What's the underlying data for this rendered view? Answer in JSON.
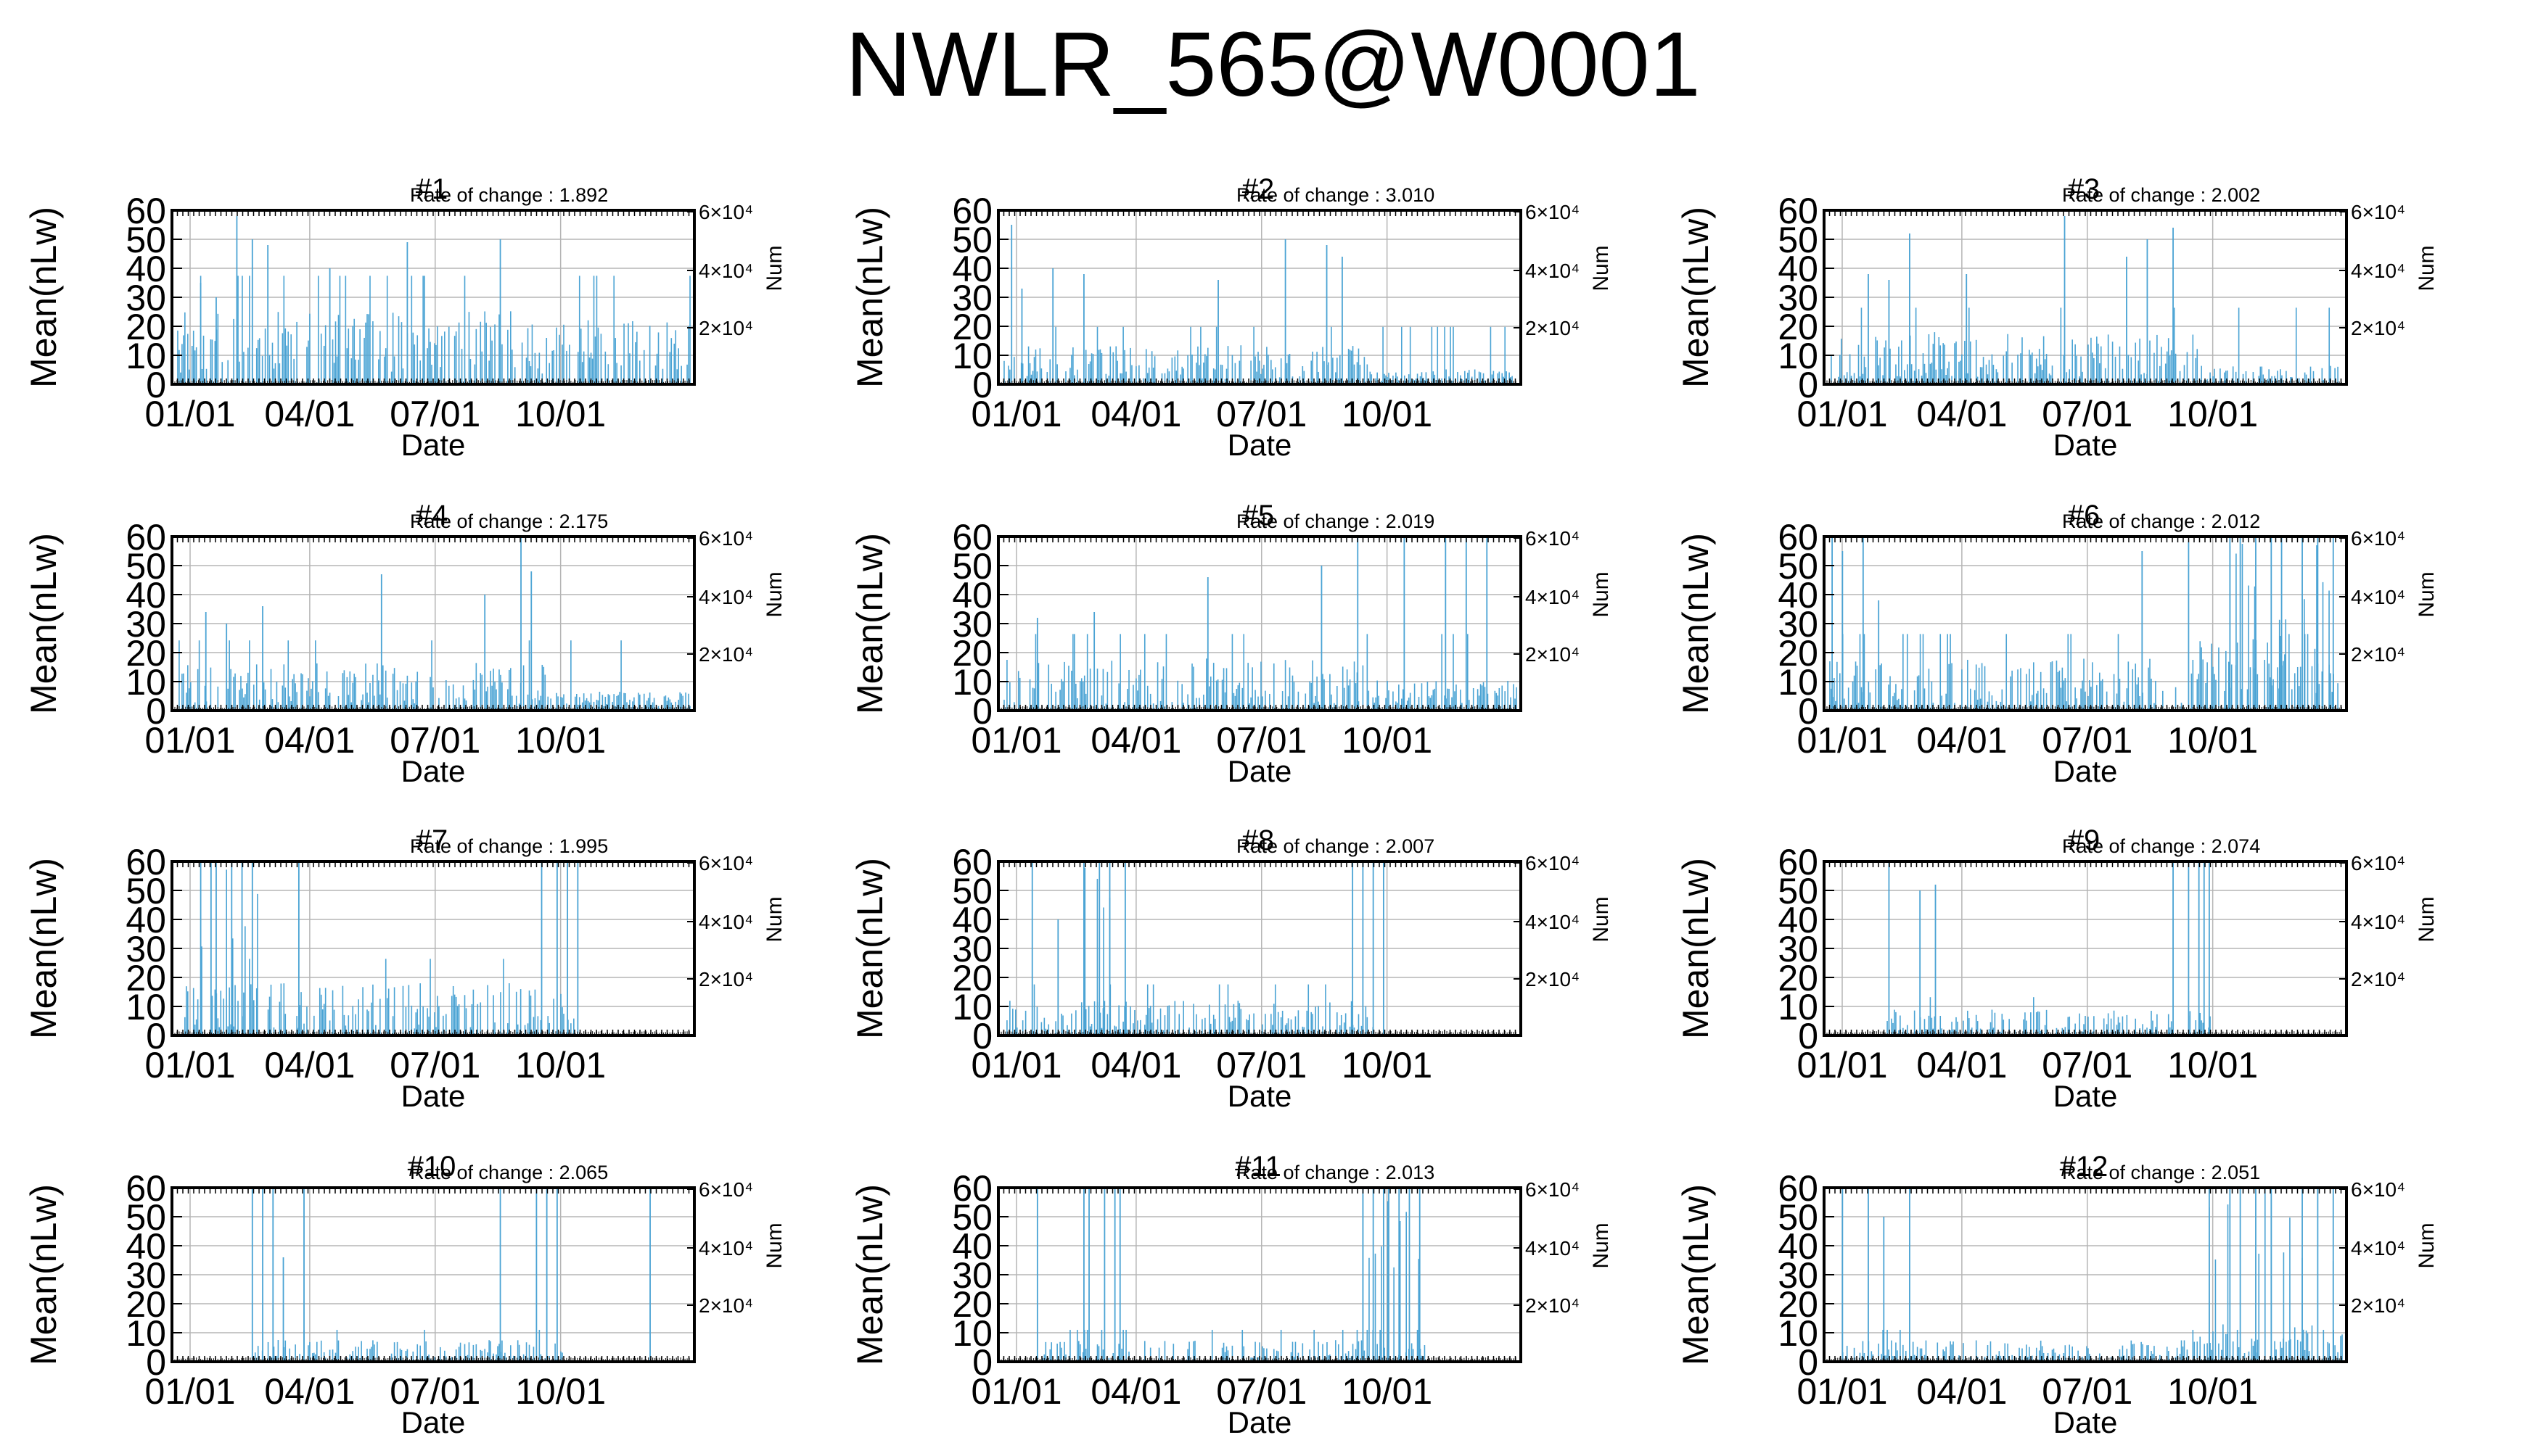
{
  "figure_title": "NWLR_565@W0001",
  "chart_data": [
    {
      "type": "bar",
      "title": "#1",
      "annotation": "Rate of change : 1.892",
      "xlabel": "Date",
      "ylabel": "Mean(nLw)",
      "y2label": "Num",
      "ylim": [
        0,
        60
      ],
      "y_ticks": [
        "0",
        "10",
        "20",
        "30",
        "40",
        "50",
        "60"
      ],
      "x_ticks": [
        "01/01",
        "04/01",
        "07/01",
        "10/01"
      ],
      "y2_ticks": [
        "2×10⁴",
        "4×10⁴",
        "6×10⁴"
      ],
      "grid": true,
      "color": "#4aa3d4",
      "typical_value": 17,
      "density": 0.55,
      "tail_level": 17,
      "spikes": [
        [
          0.05,
          35
        ],
        [
          0.12,
          58
        ],
        [
          0.15,
          50
        ],
        [
          0.18,
          48
        ],
        [
          0.45,
          49
        ],
        [
          0.63,
          50
        ],
        [
          0.08,
          30
        ],
        [
          0.3,
          40
        ]
      ],
      "outliers_periods": []
    },
    {
      "type": "bar",
      "title": "#2",
      "annotation": "Rate of change : 3.010",
      "xlabel": "Date",
      "ylabel": "Mean(nLw)",
      "y2label": "Num",
      "ylim": [
        0,
        60
      ],
      "y_ticks": [
        "0",
        "10",
        "20",
        "30",
        "40",
        "50",
        "60"
      ],
      "x_ticks": [
        "01/01",
        "04/01",
        "07/01",
        "10/01"
      ],
      "y2_ticks": [
        "2×10⁴",
        "4×10⁴",
        "6×10⁴"
      ],
      "grid": true,
      "color": "#4aa3d4",
      "typical_value": 9,
      "density": 0.55,
      "tail_level": 4,
      "spikes": [
        [
          0.02,
          55
        ],
        [
          0.1,
          40
        ],
        [
          0.16,
          38
        ],
        [
          0.42,
          36
        ],
        [
          0.55,
          50
        ],
        [
          0.63,
          48
        ],
        [
          0.66,
          44
        ],
        [
          0.04,
          33
        ]
      ],
      "outliers_periods": []
    },
    {
      "type": "bar",
      "title": "#3",
      "annotation": "Rate of change : 2.002",
      "xlabel": "Date",
      "ylabel": "Mean(nLw)",
      "y2label": "Num",
      "ylim": [
        0,
        60
      ],
      "y_ticks": [
        "0",
        "10",
        "20",
        "30",
        "40",
        "50",
        "60"
      ],
      "x_ticks": [
        "01/01",
        "04/01",
        "07/01",
        "10/01"
      ],
      "y2_ticks": [
        "2×10⁴",
        "4×10⁴",
        "6×10⁴"
      ],
      "grid": true,
      "color": "#4aa3d4",
      "typical_value": 12,
      "density": 0.55,
      "tail_level": 5,
      "spikes": [
        [
          0.08,
          38
        ],
        [
          0.16,
          52
        ],
        [
          0.27,
          38
        ],
        [
          0.46,
          58
        ],
        [
          0.58,
          44
        ],
        [
          0.62,
          50
        ],
        [
          0.67,
          54
        ],
        [
          0.12,
          36
        ]
      ],
      "outliers_periods": []
    },
    {
      "type": "bar",
      "title": "#4",
      "annotation": "Rate of change : 2.175",
      "xlabel": "Date",
      "ylabel": "Mean(nLw)",
      "y2label": "Num",
      "ylim": [
        0,
        60
      ],
      "y_ticks": [
        "0",
        "10",
        "20",
        "30",
        "40",
        "50",
        "60"
      ],
      "x_ticks": [
        "01/01",
        "04/01",
        "07/01",
        "10/01"
      ],
      "y2_ticks": [
        "2×10⁴",
        "4×10⁴",
        "6×10⁴"
      ],
      "grid": true,
      "color": "#4aa3d4",
      "typical_value": 11,
      "density": 0.55,
      "tail_level": 5,
      "spikes": [
        [
          0.06,
          34
        ],
        [
          0.17,
          36
        ],
        [
          0.4,
          47
        ],
        [
          0.6,
          40
        ],
        [
          0.67,
          60
        ],
        [
          0.69,
          48
        ],
        [
          0.1,
          30
        ]
      ],
      "outliers_periods": []
    },
    {
      "type": "bar",
      "title": "#5",
      "annotation": "Rate of change : 2.019",
      "xlabel": "Date",
      "ylabel": "Mean(nLw)",
      "y2label": "Num",
      "ylim": [
        0,
        60
      ],
      "y_ticks": [
        "0",
        "10",
        "20",
        "30",
        "40",
        "50",
        "60"
      ],
      "x_ticks": [
        "01/01",
        "04/01",
        "07/01",
        "10/01"
      ],
      "y2_ticks": [
        "2×10⁴",
        "4×10⁴",
        "6×10⁴"
      ],
      "grid": true,
      "color": "#4aa3d4",
      "typical_value": 12,
      "density": 0.55,
      "tail_level": 8,
      "spikes": [
        [
          0.07,
          32
        ],
        [
          0.18,
          34
        ],
        [
          0.4,
          46
        ],
        [
          0.62,
          50
        ],
        [
          0.69,
          60
        ],
        [
          0.78,
          60
        ],
        [
          0.86,
          60
        ],
        [
          0.9,
          60
        ],
        [
          0.94,
          60
        ]
      ],
      "outliers_periods": []
    },
    {
      "type": "bar",
      "title": "#6",
      "annotation": "Rate of change : 2.012",
      "xlabel": "Date",
      "ylabel": "Mean(nLw)",
      "y2label": "Num",
      "ylim": [
        0,
        60
      ],
      "y_ticks": [
        "0",
        "10",
        "20",
        "30",
        "40",
        "50",
        "60"
      ],
      "x_ticks": [
        "01/01",
        "04/01",
        "07/01",
        "10/01"
      ],
      "y2_ticks": [
        "2×10⁴",
        "4×10⁴",
        "6×10⁴"
      ],
      "grid": true,
      "color": "#4aa3d4",
      "typical_value": 12,
      "density": 0.55,
      "tail_level": 20,
      "spikes": [
        [
          0.01,
          60
        ],
        [
          0.03,
          55
        ],
        [
          0.07,
          60
        ],
        [
          0.1,
          38
        ],
        [
          0.61,
          55
        ],
        [
          0.7,
          58
        ],
        [
          0.78,
          60
        ],
        [
          0.8,
          60
        ],
        [
          0.83,
          60
        ],
        [
          0.86,
          60
        ],
        [
          0.88,
          60
        ],
        [
          0.92,
          60
        ],
        [
          0.95,
          60
        ],
        [
          0.98,
          60
        ]
      ],
      "outliers_periods": [
        [
          0.78,
          1.0
        ]
      ]
    },
    {
      "type": "bar",
      "title": "#7",
      "annotation": "Rate of change : 1.995",
      "xlabel": "Date",
      "ylabel": "Mean(nLw)",
      "y2label": "Num",
      "ylim": [
        0,
        60
      ],
      "y_ticks": [
        "0",
        "10",
        "20",
        "30",
        "40",
        "50",
        "60"
      ],
      "x_ticks": [
        "01/01",
        "04/01",
        "07/01",
        "10/01"
      ],
      "y2_ticks": [
        "2×10⁴",
        "4×10⁴",
        "6×10⁴"
      ],
      "grid": true,
      "color": "#4aa3d4",
      "typical_value": 12,
      "density": 0.5,
      "tail_level": 0,
      "spikes": [
        [
          0.05,
          60
        ],
        [
          0.07,
          60
        ],
        [
          0.08,
          60
        ],
        [
          0.11,
          60
        ],
        [
          0.13,
          60
        ],
        [
          0.15,
          60
        ],
        [
          0.24,
          60
        ],
        [
          0.71,
          60
        ],
        [
          0.74,
          60
        ],
        [
          0.76,
          60
        ],
        [
          0.78,
          60
        ]
      ],
      "outliers_periods": [
        [
          0.04,
          0.16
        ]
      ],
      "data_end": 0.78
    },
    {
      "type": "bar",
      "title": "#8",
      "annotation": "Rate of change : 2.007",
      "xlabel": "Date",
      "ylabel": "Mean(nLw)",
      "y2label": "Num",
      "ylim": [
        0,
        60
      ],
      "y_ticks": [
        "0",
        "10",
        "20",
        "30",
        "40",
        "50",
        "60"
      ],
      "x_ticks": [
        "01/01",
        "04/01",
        "07/01",
        "10/01"
      ],
      "y2_ticks": [
        "2×10⁴",
        "4×10⁴",
        "6×10⁴"
      ],
      "grid": true,
      "color": "#4aa3d4",
      "typical_value": 8,
      "density": 0.45,
      "tail_level": 0,
      "spikes": [
        [
          0.06,
          60
        ],
        [
          0.11,
          40
        ],
        [
          0.16,
          60
        ],
        [
          0.19,
          60
        ],
        [
          0.21,
          60
        ],
        [
          0.24,
          60
        ],
        [
          0.68,
          60
        ],
        [
          0.7,
          60
        ],
        [
          0.72,
          60
        ],
        [
          0.74,
          60
        ]
      ],
      "outliers_periods": [
        [
          0.15,
          0.25
        ]
      ],
      "data_end": 0.75
    },
    {
      "type": "bar",
      "title": "#9",
      "annotation": "Rate of change : 2.074",
      "xlabel": "Date",
      "ylabel": "Mean(nLw)",
      "y2label": "Num",
      "ylim": [
        0,
        60
      ],
      "y_ticks": [
        "0",
        "10",
        "20",
        "30",
        "40",
        "50",
        "60"
      ],
      "x_ticks": [
        "01/01",
        "04/01",
        "07/01",
        "10/01"
      ],
      "y2_ticks": [
        "2×10⁴",
        "4×10⁴",
        "6×10⁴"
      ],
      "grid": true,
      "color": "#4aa3d4",
      "typical_value": 6,
      "density": 0.45,
      "tail_level": 0,
      "spikes": [
        [
          0.12,
          60
        ],
        [
          0.18,
          50
        ],
        [
          0.21,
          52
        ],
        [
          0.67,
          60
        ],
        [
          0.7,
          60
        ],
        [
          0.72,
          60
        ],
        [
          0.73,
          60
        ],
        [
          0.74,
          60
        ]
      ],
      "outliers_periods": [],
      "data_start": 0.11,
      "data_end": 0.75
    },
    {
      "type": "bar",
      "title": "#10",
      "annotation": "Rate of change : 2.065",
      "xlabel": "Date",
      "ylabel": "Mean(nLw)",
      "y2label": "Num",
      "ylim": [
        0,
        60
      ],
      "y_ticks": [
        "0",
        "10",
        "20",
        "30",
        "40",
        "50",
        "60"
      ],
      "x_ticks": [
        "01/01",
        "04/01",
        "07/01",
        "10/01"
      ],
      "y2_ticks": [
        "2×10⁴",
        "4×10⁴",
        "6×10⁴"
      ],
      "grid": true,
      "color": "#4aa3d4",
      "typical_value": 5,
      "density": 0.45,
      "tail_level": 0,
      "spikes": [
        [
          0.15,
          60
        ],
        [
          0.17,
          60
        ],
        [
          0.19,
          60
        ],
        [
          0.21,
          36
        ],
        [
          0.25,
          60
        ],
        [
          0.63,
          60
        ],
        [
          0.7,
          60
        ],
        [
          0.72,
          60
        ],
        [
          0.74,
          60
        ],
        [
          0.92,
          60
        ]
      ],
      "outliers_periods": [],
      "data_start": 0.15,
      "data_end": 0.75
    },
    {
      "type": "bar",
      "title": "#11",
      "annotation": "Rate of change : 2.013",
      "xlabel": "Date",
      "ylabel": "Mean(nLw)",
      "y2label": "Num",
      "ylim": [
        0,
        60
      ],
      "y_ticks": [
        "0",
        "10",
        "20",
        "30",
        "40",
        "50",
        "60"
      ],
      "x_ticks": [
        "01/01",
        "04/01",
        "07/01",
        "10/01"
      ],
      "y2_ticks": [
        "2×10⁴",
        "4×10⁴",
        "6×10⁴"
      ],
      "grid": true,
      "color": "#4aa3d4",
      "typical_value": 5,
      "density": 0.45,
      "tail_level": 0,
      "spikes": [
        [
          0.07,
          60
        ],
        [
          0.16,
          60
        ],
        [
          0.17,
          60
        ],
        [
          0.2,
          60
        ],
        [
          0.22,
          60
        ],
        [
          0.23,
          60
        ],
        [
          0.7,
          60
        ],
        [
          0.72,
          60
        ],
        [
          0.74,
          60
        ],
        [
          0.75,
          60
        ],
        [
          0.77,
          60
        ],
        [
          0.79,
          60
        ],
        [
          0.81,
          60
        ]
      ],
      "outliers_periods": [
        [
          0.7,
          0.82
        ]
      ],
      "data_start": 0.07,
      "data_end": 0.82
    },
    {
      "type": "bar",
      "title": "#12",
      "annotation": "Rate of change : 2.051",
      "xlabel": "Date",
      "ylabel": "Mean(nLw)",
      "y2label": "Num",
      "ylim": [
        0,
        60
      ],
      "y_ticks": [
        "0",
        "10",
        "20",
        "30",
        "40",
        "50",
        "60"
      ],
      "x_ticks": [
        "01/01",
        "04/01",
        "07/01",
        "10/01"
      ],
      "y2_ticks": [
        "2×10⁴",
        "4×10⁴",
        "6×10⁴"
      ],
      "grid": true,
      "color": "#4aa3d4",
      "typical_value": 5,
      "density": 0.45,
      "tail_level": 10,
      "spikes": [
        [
          0.03,
          60
        ],
        [
          0.08,
          60
        ],
        [
          0.11,
          50
        ],
        [
          0.16,
          60
        ],
        [
          0.74,
          60
        ],
        [
          0.78,
          60
        ],
        [
          0.8,
          60
        ],
        [
          0.83,
          60
        ],
        [
          0.86,
          60
        ],
        [
          0.92,
          60
        ],
        [
          0.95,
          60
        ],
        [
          0.98,
          60
        ]
      ],
      "outliers_periods": [
        [
          0.74,
          1.0
        ]
      ],
      "data_start": 0.02
    }
  ]
}
